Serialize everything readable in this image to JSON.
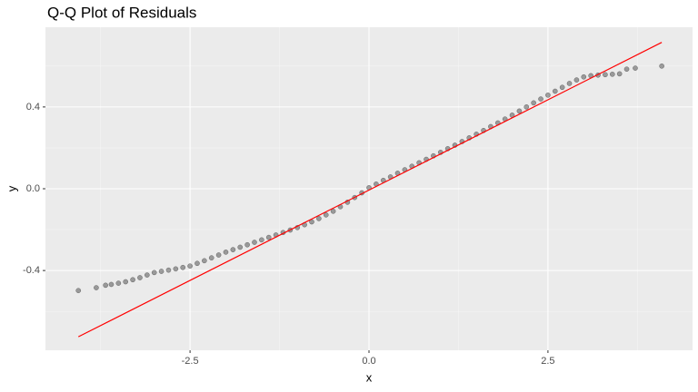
{
  "chart_data": {
    "type": "scatter",
    "title": "Q-Q Plot of Residuals",
    "x_label": "x",
    "y_label": "y",
    "xlim": [
      -4.52,
      4.52
    ],
    "ylim": [
      -0.79,
      0.79
    ],
    "xticks": [
      -2.5,
      {
        "value": 0,
        "label": "0.0"
      },
      2.5
    ],
    "yticks": [
      -0.4,
      {
        "value": 0,
        "label": "0.0"
      },
      0.4
    ],
    "x_minor_grid": [
      -3.75,
      -1.25,
      1.25,
      3.75
    ],
    "y_minor_grid": [
      -0.6,
      -0.2,
      0.2,
      0.6
    ],
    "grid": true,
    "points": {
      "color": "#000000",
      "x": [
        -4.06,
        -3.81,
        -3.68,
        -3.6,
        -3.5,
        -3.4,
        -3.3,
        -3.2,
        -3.1,
        -3.0,
        -2.9,
        -2.8,
        -2.7,
        -2.6,
        -2.5,
        -2.4,
        -2.3,
        -2.2,
        -2.1,
        -2.0,
        -1.9,
        -1.8,
        -1.7,
        -1.6,
        -1.5,
        -1.4,
        -1.3,
        -1.2,
        -1.1,
        -1.0,
        -0.9,
        -0.8,
        -0.7,
        -0.6,
        -0.5,
        -0.4,
        -0.3,
        -0.2,
        -0.1,
        0,
        0.1,
        0.2,
        0.3,
        0.4,
        0.5,
        0.6,
        0.7,
        0.8,
        0.9,
        1.0,
        1.1,
        1.2,
        1.3,
        1.4,
        1.5,
        1.6,
        1.7,
        1.8,
        1.9,
        2.0,
        2.1,
        2.2,
        2.3,
        2.4,
        2.5,
        2.6,
        2.7,
        2.8,
        2.9,
        3.0,
        3.1,
        3.2,
        3.3,
        3.4,
        3.5,
        3.6,
        3.72,
        4.09
      ],
      "y": [
        -0.498,
        -0.484,
        -0.472,
        -0.468,
        -0.462,
        -0.455,
        -0.445,
        -0.435,
        -0.422,
        -0.41,
        -0.404,
        -0.398,
        -0.392,
        -0.385,
        -0.378,
        -0.365,
        -0.352,
        -0.338,
        -0.324,
        -0.31,
        -0.298,
        -0.286,
        -0.274,
        -0.262,
        -0.25,
        -0.238,
        -0.226,
        -0.214,
        -0.202,
        -0.19,
        -0.176,
        -0.162,
        -0.146,
        -0.128,
        -0.11,
        -0.088,
        -0.066,
        -0.043,
        -0.02,
        0.005,
        0.023,
        0.041,
        0.058,
        0.076,
        0.093,
        0.11,
        0.127,
        0.144,
        0.161,
        0.178,
        0.196,
        0.213,
        0.231,
        0.249,
        0.267,
        0.285,
        0.304,
        0.322,
        0.341,
        0.36,
        0.38,
        0.4,
        0.42,
        0.439,
        0.458,
        0.477,
        0.496,
        0.515,
        0.532,
        0.547,
        0.553,
        0.556,
        0.558,
        0.56,
        0.562,
        0.585,
        0.59,
        0.6
      ]
    },
    "reference_line": {
      "color": "#ff0000",
      "x": [
        -4.06,
        4.09
      ],
      "y": [
        -0.724,
        0.716
      ]
    }
  }
}
